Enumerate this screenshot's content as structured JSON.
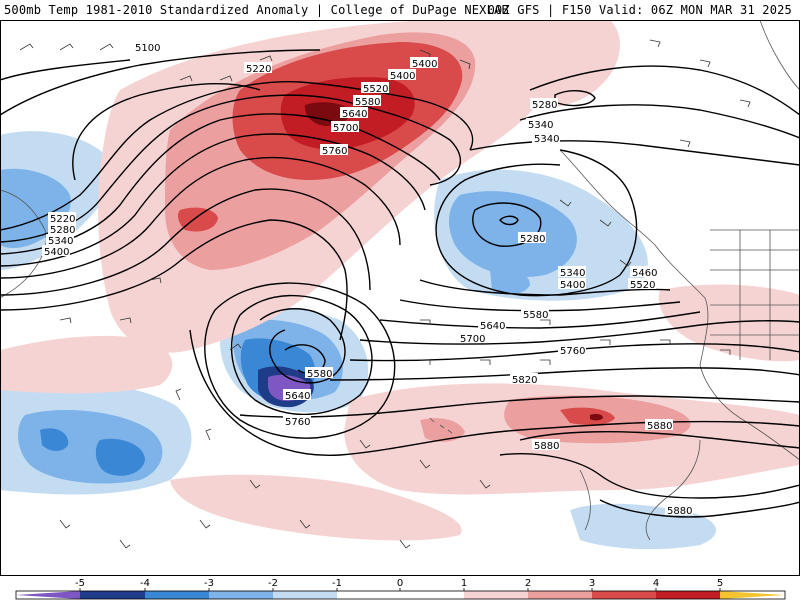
{
  "header": {
    "title_left": "500mb Temp 1981-2010 Standardized Anomaly | College of DuPage NEXLAB",
    "title_right": "00Z GFS | F150 Valid: 06Z MON MAR 31 2025"
  },
  "colors": {
    "neg5": "#7e57c2",
    "neg4": "#1f3c88",
    "neg3": "#3a87d6",
    "neg2": "#7db3e8",
    "neg1": "#c4dcf2",
    "zero": "#ffffff",
    "pos1": "#f6d3d3",
    "pos2": "#ec9f9f",
    "pos3": "#d94a4a",
    "pos4": "#c21d24",
    "pos5": "#7a0a10",
    "over": "#f4c430",
    "contour": "#000000",
    "coast": "#555555"
  },
  "colorbar": {
    "ticks": [
      "-5",
      "-4",
      "-3",
      "-2",
      "-1",
      "0",
      "1",
      "2",
      "3",
      "4",
      "5"
    ]
  },
  "contour_labels": {
    "l5100": "5100",
    "l5220a": "5220",
    "l5400a": "5400",
    "l5400b": "5400",
    "l5520a": "5520",
    "l5580a": "5580",
    "l5640a": "5640",
    "l5700a": "5700",
    "l5760a": "5760",
    "l5280a": "5280",
    "l5340a": "5340",
    "l5340b": "5340",
    "l5220b": "5220",
    "l5280b": "5280",
    "l5340c": "5340",
    "l5400c": "5400",
    "l5280c": "5280",
    "l5340d": "5340",
    "l5400d": "5400",
    "l5460": "5460",
    "l5520b": "5520",
    "l5580b": "5580",
    "l5640b": "5640",
    "l5700b": "5700",
    "l5760b": "5760",
    "l5820": "5820",
    "l5580c": "5580",
    "l5640c": "5640",
    "l5760c": "5760",
    "l5880a": "5880",
    "l5880b": "5880",
    "l5880c": "5880"
  }
}
